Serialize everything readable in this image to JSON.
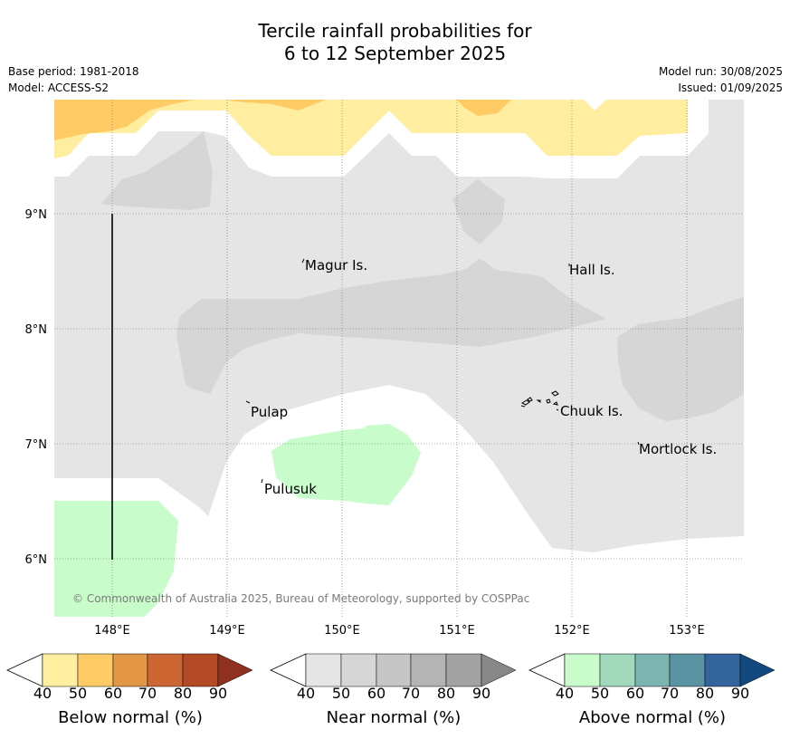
{
  "title_line1": "Tercile rainfall probabilities for",
  "title_line2": "6 to 12 September 2025",
  "base_period": "Base period: 1981-2018",
  "model": "Model: ACCESS-S2",
  "model_run": "Model run: 30/08/2025",
  "issued": "Issued: 01/09/2025",
  "copyright": "© Commonwealth of Australia 2025, Bureau of Meteorology, supported by COSPPac",
  "map": {
    "lat_ticks": [
      "9°N",
      "8°N",
      "7°N",
      "6°N"
    ],
    "lon_ticks": [
      "148°E",
      "149°E",
      "150°E",
      "151°E",
      "152°E",
      "153°E"
    ],
    "places": [
      "Magur Is.",
      "Hall Is.",
      "Pulap",
      "Chuuk Is.",
      "Mortlock Is.",
      "Pulusuk"
    ]
  },
  "colorbars": [
    {
      "title": "Below normal (%)",
      "ticks": [
        "40",
        "50",
        "60",
        "70",
        "80",
        "90"
      ],
      "colors": [
        "#ffeda0",
        "#fecb65",
        "#e29646",
        "#cc6633",
        "#b24a28",
        "#8f3020"
      ]
    },
    {
      "title": "Near normal (%)",
      "ticks": [
        "40",
        "50",
        "60",
        "70",
        "80",
        "90"
      ],
      "colors": [
        "#e5e5e5",
        "#d6d6d6",
        "#c6c6c6",
        "#b4b4b4",
        "#a2a2a2",
        "#888888"
      ]
    },
    {
      "title": "Above normal (%)",
      "ticks": [
        "40",
        "50",
        "60",
        "70",
        "80",
        "90"
      ],
      "colors": [
        "#c8fccb",
        "#a2d8bb",
        "#7cb4b0",
        "#5a93a2",
        "#33659a",
        "#124a80"
      ]
    }
  ]
}
